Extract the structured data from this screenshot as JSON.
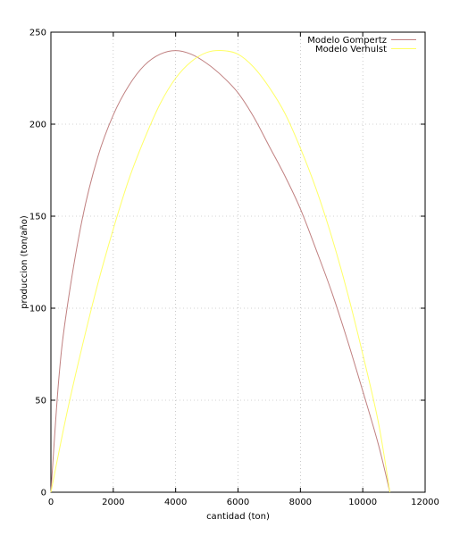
{
  "chart_data": {
    "type": "line",
    "xlabel": "cantidad (ton)",
    "ylabel": "produccion (ton/año)",
    "xlim": [
      0,
      12000
    ],
    "ylim": [
      0,
      250
    ],
    "xticks": [
      "0",
      "2000",
      "4000",
      "6000",
      "8000",
      "10000",
      "12000"
    ],
    "yticks": [
      "0",
      "50",
      "100",
      "150",
      "200",
      "250"
    ],
    "grid": true,
    "legend": "top-right",
    "series": [
      {
        "name": "Modelo Gompertz",
        "color": "#c08080",
        "x": [
          0,
          250,
          500,
          1000,
          1500,
          2000,
          2500,
          3000,
          3500,
          4000,
          4500,
          5000,
          5500,
          6000,
          6500,
          7000,
          7500,
          8000,
          8500,
          9000,
          9500,
          10000,
          10500,
          10870
        ],
        "y": [
          0,
          61,
          98,
          148,
          182,
          205,
          221,
          232,
          238,
          240,
          238,
          233,
          226,
          217,
          204,
          188,
          172,
          154,
          132,
          109,
          83,
          55,
          26,
          0
        ]
      },
      {
        "name": "Modelo Verhulst",
        "color": "#ffff66",
        "x": [
          0,
          500,
          1000,
          1500,
          2000,
          2500,
          3000,
          3500,
          4000,
          4500,
          5000,
          5500,
          6000,
          6500,
          7000,
          7500,
          8000,
          8500,
          9000,
          9500,
          10000,
          10500,
          10870
        ],
        "y": [
          0,
          42,
          79,
          113,
          143,
          170,
          192,
          211,
          225,
          234,
          239,
          240,
          238,
          231,
          220,
          206,
          187,
          165,
          139,
          109,
          75,
          38,
          0
        ]
      }
    ]
  }
}
